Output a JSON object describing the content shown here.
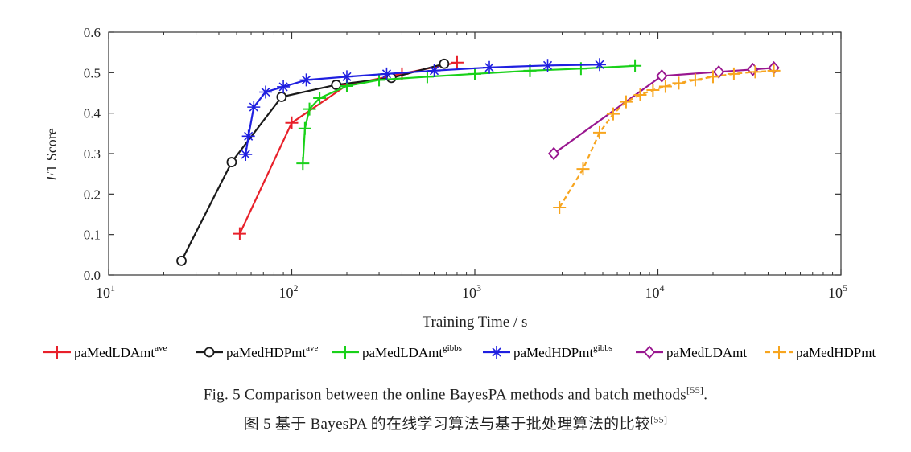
{
  "chart_data": {
    "type": "line",
    "title": "",
    "xlabel": "Training Time / s",
    "ylabel_italic": "F",
    "ylabel_rest": "1 Score",
    "xscale": "log",
    "xlim": [
      10,
      100000
    ],
    "ylim": [
      0.0,
      0.6
    ],
    "yticks": [
      "0.0",
      "0.1",
      "0.2",
      "0.3",
      "0.4",
      "0.5",
      "0.6"
    ],
    "xticks": [
      {
        "base": "10",
        "exp": "1"
      },
      {
        "base": "10",
        "exp": "2"
      },
      {
        "base": "10",
        "exp": "3"
      },
      {
        "base": "10",
        "exp": "4"
      },
      {
        "base": "10",
        "exp": "5"
      }
    ],
    "legend_position": "bottom",
    "series": [
      {
        "name": "paMedLDAmt",
        "sup": "ave",
        "color": "#e8202a",
        "marker": "plus",
        "dash": "solid",
        "x": [
          52,
          100,
          200,
          400,
          800
        ],
        "y": [
          0.102,
          0.376,
          0.469,
          0.497,
          0.525
        ]
      },
      {
        "name": "paMedHDPmt",
        "sup": "ave",
        "color": "#1a1a1a",
        "marker": "circle",
        "dash": "solid",
        "x": [
          25,
          47,
          88,
          175,
          350,
          680
        ],
        "y": [
          0.035,
          0.279,
          0.44,
          0.47,
          0.487,
          0.522
        ]
      },
      {
        "name": "paMedLDAmt",
        "sup": "gibbs",
        "color": "#19d119",
        "marker": "plus",
        "dash": "solid",
        "x": [
          115,
          118,
          125,
          142,
          200,
          300,
          550,
          1000,
          2000,
          3800,
          7500
        ],
        "y": [
          0.276,
          0.362,
          0.41,
          0.437,
          0.467,
          0.482,
          0.49,
          0.497,
          0.505,
          0.51,
          0.517
        ]
      },
      {
        "name": "paMedHDPmt",
        "sup": "gibbs",
        "color": "#1f1fe0",
        "marker": "star",
        "dash": "solid",
        "x": [
          56,
          58,
          62,
          72,
          90,
          120,
          200,
          330,
          600,
          1200,
          2500,
          4800
        ],
        "y": [
          0.298,
          0.343,
          0.415,
          0.452,
          0.465,
          0.482,
          0.49,
          0.497,
          0.505,
          0.513,
          0.518,
          0.52
        ]
      },
      {
        "name": "paMedLDAmt",
        "sup": "",
        "color": "#99168f",
        "marker": "diamond",
        "dash": "solid",
        "x": [
          2700,
          10500,
          21500,
          33000,
          43000
        ],
        "y": [
          0.3,
          0.492,
          0.502,
          0.508,
          0.512
        ]
      },
      {
        "name": "paMedHDPmt",
        "sup": "",
        "color": "#f7a51f",
        "marker": "plus",
        "dash": "dashed",
        "x": [
          2900,
          3900,
          4800,
          5700,
          6700,
          8000,
          9400,
          11000,
          13000,
          16000,
          20000,
          26000,
          34000,
          43000
        ],
        "y": [
          0.167,
          0.262,
          0.352,
          0.398,
          0.428,
          0.445,
          0.457,
          0.466,
          0.474,
          0.482,
          0.49,
          0.497,
          0.502,
          0.505
        ]
      }
    ]
  },
  "caption": {
    "en_text": "Fig. 5   Comparison between the online BayesPA methods and batch methods",
    "en_ref": "[55]",
    "en_end": ".",
    "zh_text": "图 5   基于 BayesPA 的在线学习算法与基于批处理算法的比较",
    "zh_ref": "[55]"
  }
}
